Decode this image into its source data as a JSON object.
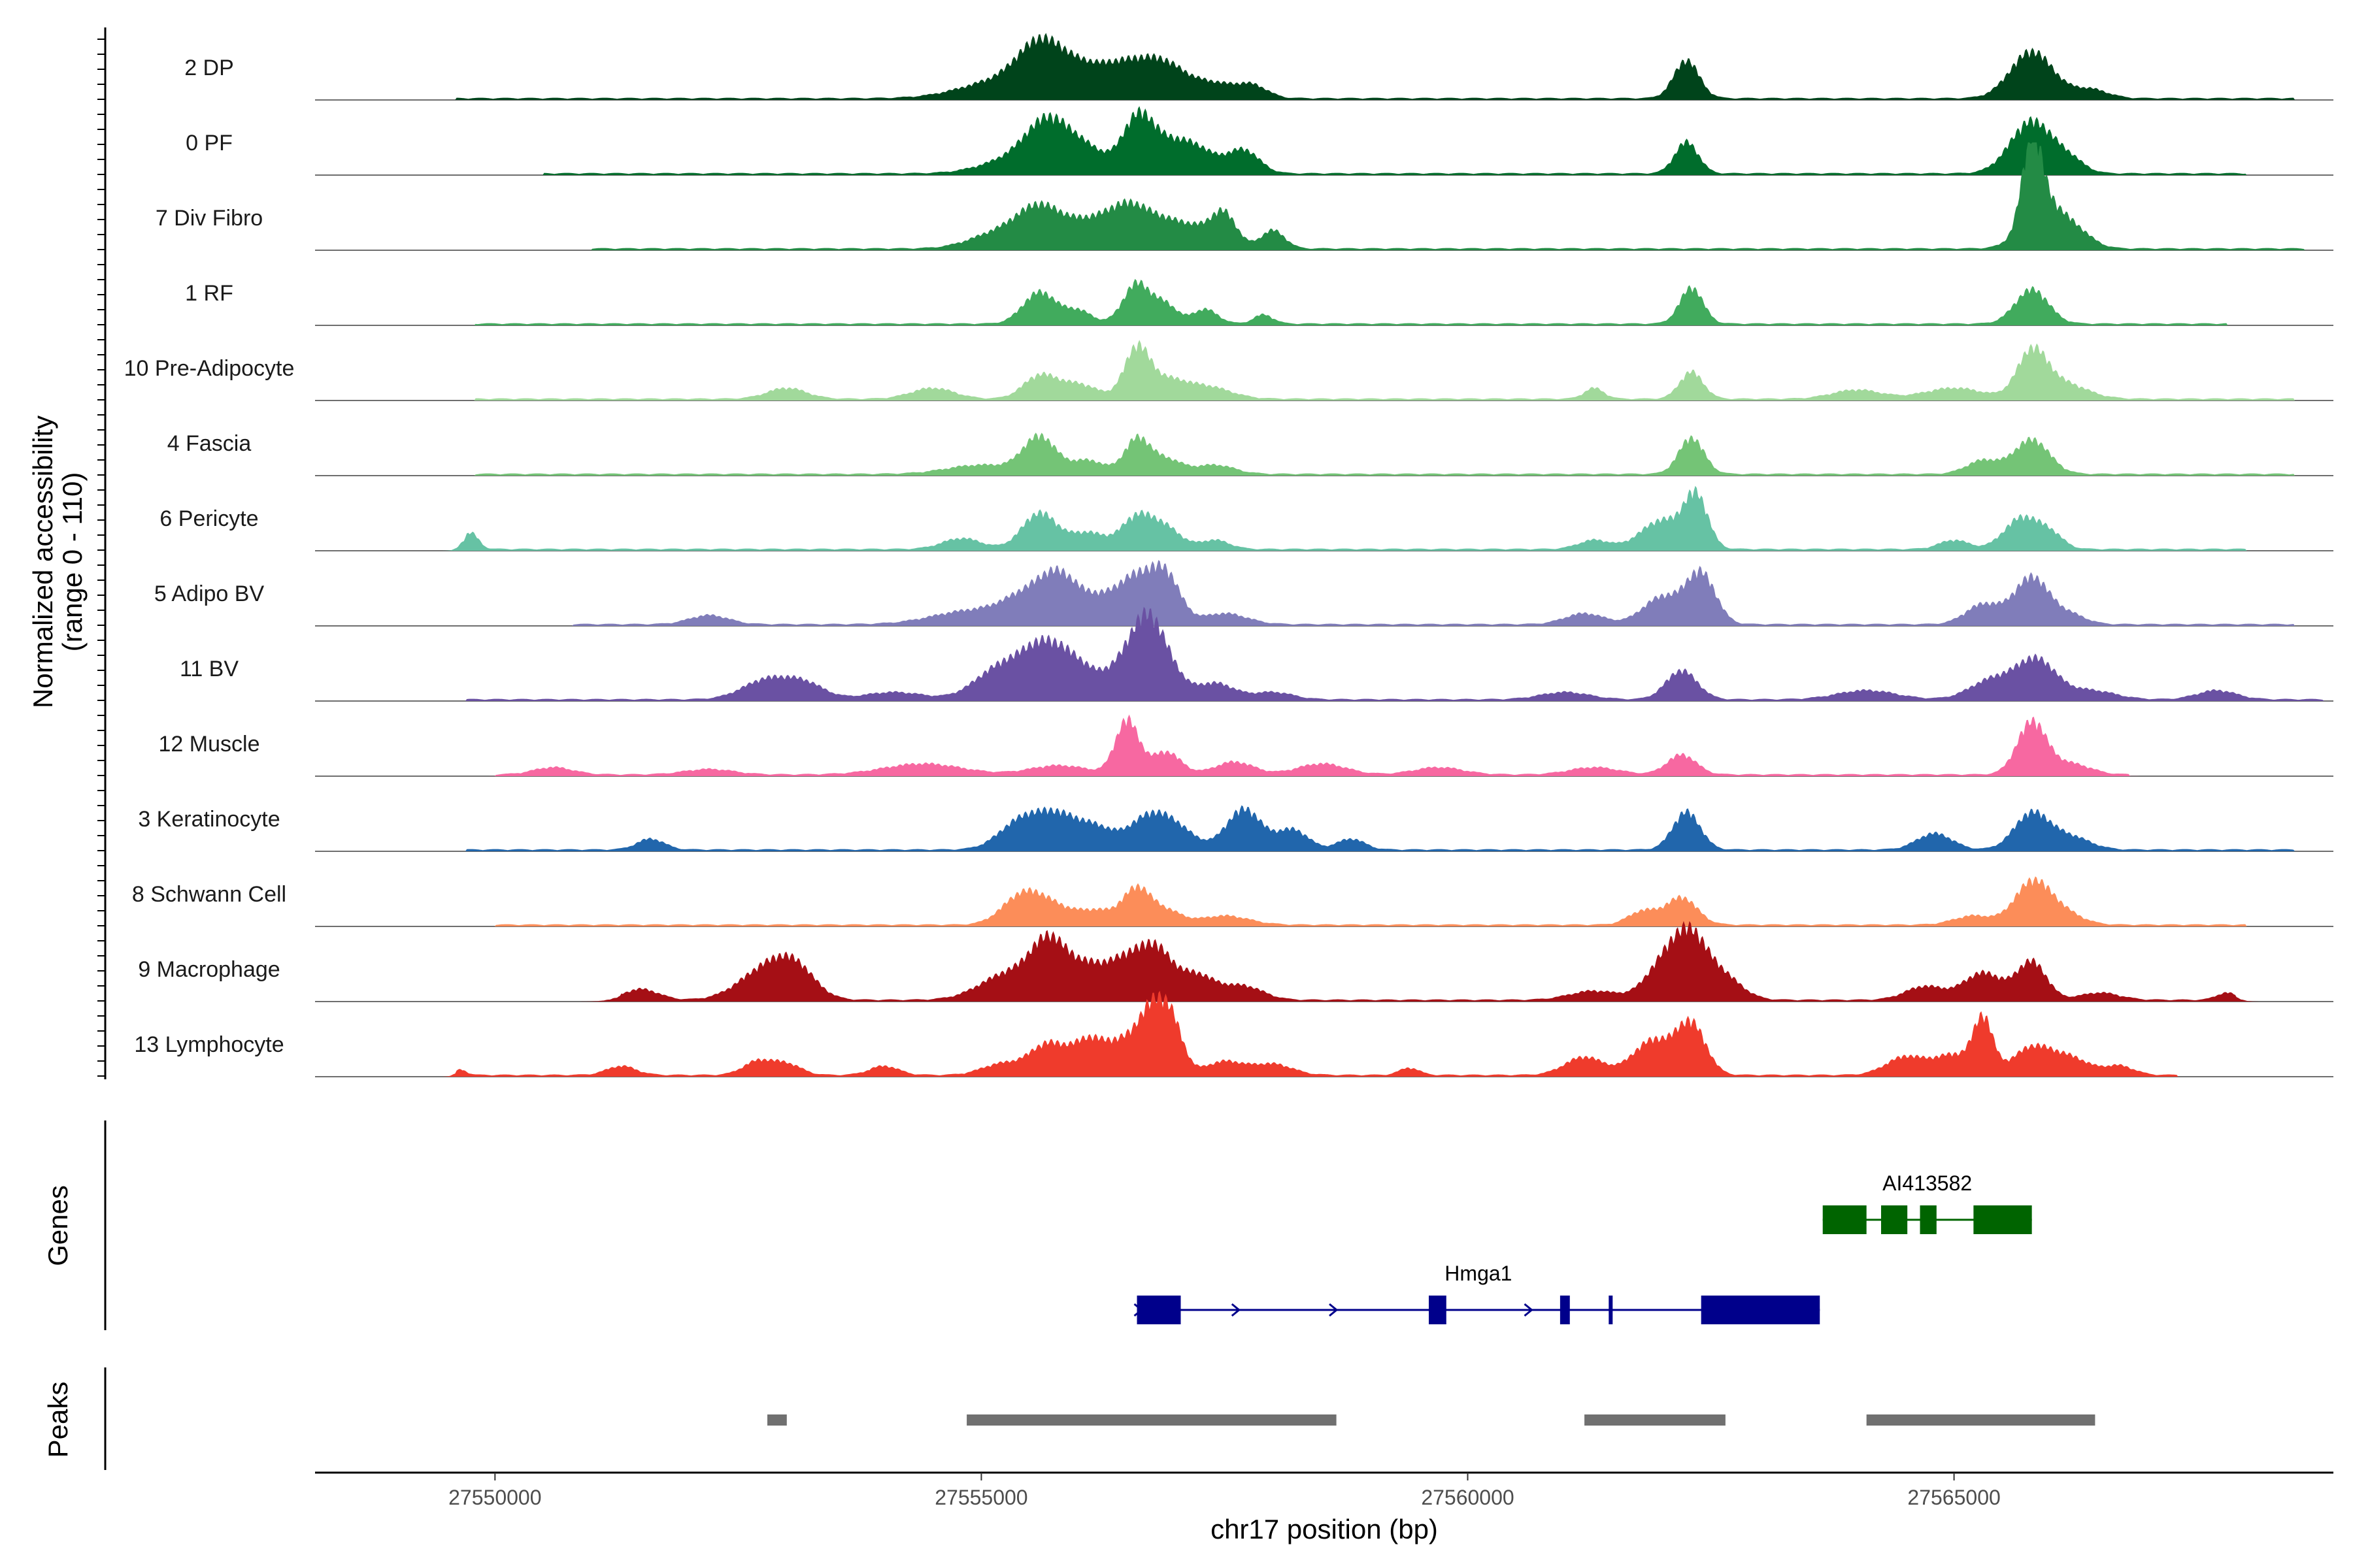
{
  "chart_data": {
    "type": "area",
    "title": "",
    "chromosome": "chr17",
    "xlabel": "chr17 position (bp)",
    "ylabel": "Normalized accessibility",
    "ylabel_range": "(range 0 - 110)",
    "xlim": [
      27548150,
      27568900
    ],
    "ylim": [
      0,
      110
    ],
    "x_ticks": [
      27550000,
      27555000,
      27560000,
      27565000
    ],
    "x_tick_labels": [
      "27550000",
      "27555000",
      "27560000",
      "27565000"
    ],
    "tracks": [
      {
        "name": "2 DP",
        "color": "#00441b",
        "noise": [
          27549600,
          27568500
        ],
        "peaks": [
          [
            27555300,
            450,
            22
          ],
          [
            27555600,
            220,
            42
          ],
          [
            27556000,
            250,
            26
          ],
          [
            27556500,
            260,
            34
          ],
          [
            27556900,
            220,
            30
          ],
          [
            27557400,
            240,
            16
          ],
          [
            27557800,
            150,
            12
          ],
          [
            27562250,
            130,
            42
          ],
          [
            27565800,
            220,
            52
          ],
          [
            27566400,
            180,
            10
          ]
        ]
      },
      {
        "name": "0 PF",
        "color": "#006d2c",
        "noise": [
          27550500,
          27568000
        ],
        "peaks": [
          [
            27555400,
            350,
            18
          ],
          [
            27555700,
            220,
            48
          ],
          [
            27556100,
            200,
            22
          ],
          [
            27556600,
            150,
            44
          ],
          [
            27556800,
            250,
            30
          ],
          [
            27557200,
            220,
            25
          ],
          [
            27557700,
            160,
            25
          ],
          [
            27562250,
            120,
            35
          ],
          [
            27565800,
            220,
            58
          ],
          [
            27566200,
            150,
            12
          ]
        ]
      },
      {
        "name": "7 Div Fibro",
        "color": "#238b45",
        "noise": [
          27551000,
          27568600
        ],
        "peaks": [
          [
            27555200,
            300,
            18
          ],
          [
            27555600,
            220,
            38
          ],
          [
            27556100,
            260,
            28
          ],
          [
            27556500,
            200,
            33
          ],
          [
            27556850,
            250,
            26
          ],
          [
            27557300,
            250,
            18
          ],
          [
            27557500,
            120,
            28
          ],
          [
            27558000,
            120,
            20
          ],
          [
            27565800,
            100,
            90
          ],
          [
            27565950,
            220,
            48
          ],
          [
            27566300,
            160,
            10
          ]
        ]
      },
      {
        "name": "1 RF",
        "color": "#41ab5d",
        "noise": [
          27549800,
          27567800
        ],
        "peaks": [
          [
            27555600,
            170,
            35
          ],
          [
            27556000,
            140,
            14
          ],
          [
            27556600,
            140,
            45
          ],
          [
            27556900,
            120,
            20
          ],
          [
            27557300,
            130,
            16
          ],
          [
            27557900,
            100,
            10
          ],
          [
            27562300,
            120,
            40
          ],
          [
            27565800,
            170,
            38
          ]
        ]
      },
      {
        "name": "10 Pre-Adipocyte",
        "color": "#a1d99b",
        "noise": [
          27549800,
          27568500
        ],
        "peaks": [
          [
            27553000,
            200,
            12
          ],
          [
            27554500,
            220,
            12
          ],
          [
            27555600,
            170,
            25
          ],
          [
            27556000,
            200,
            16
          ],
          [
            27556600,
            130,
            55
          ],
          [
            27556900,
            180,
            18
          ],
          [
            27557300,
            250,
            14
          ],
          [
            27561300,
            100,
            12
          ],
          [
            27562300,
            120,
            30
          ],
          [
            27564000,
            250,
            10
          ],
          [
            27565000,
            300,
            12
          ],
          [
            27565800,
            150,
            48
          ],
          [
            27566100,
            250,
            18
          ]
        ]
      },
      {
        "name": "4 Fascia",
        "color": "#74c476",
        "noise": [
          27549800,
          27568500
        ],
        "peaks": [
          [
            27555000,
            350,
            10
          ],
          [
            27555600,
            170,
            40
          ],
          [
            27556100,
            170,
            15
          ],
          [
            27556600,
            130,
            38
          ],
          [
            27556900,
            160,
            16
          ],
          [
            27557400,
            200,
            10
          ],
          [
            27562300,
            130,
            40
          ],
          [
            27565300,
            170,
            15
          ],
          [
            27565800,
            180,
            38
          ]
        ]
      },
      {
        "name": "6 Pericyte",
        "color": "#66c2a4",
        "noise": [
          27549700,
          27568000
        ],
        "peaks": [
          [
            27549750,
            80,
            18
          ],
          [
            27554800,
            200,
            12
          ],
          [
            27555600,
            180,
            40
          ],
          [
            27556100,
            180,
            18
          ],
          [
            27556600,
            160,
            35
          ],
          [
            27556900,
            160,
            22
          ],
          [
            27557400,
            150,
            10
          ],
          [
            27561300,
            160,
            10
          ],
          [
            27562000,
            220,
            32
          ],
          [
            27562350,
            120,
            55
          ],
          [
            27565000,
            150,
            10
          ],
          [
            27565700,
            180,
            35
          ],
          [
            27566000,
            130,
            14
          ]
        ]
      },
      {
        "name": "5 Adipo BV",
        "color": "#807dba",
        "noise": [
          27550800,
          27568500
        ],
        "peaks": [
          [
            27552200,
            200,
            10
          ],
          [
            27554900,
            400,
            15
          ],
          [
            27555500,
            250,
            30
          ],
          [
            27555800,
            180,
            38
          ],
          [
            27556200,
            230,
            28
          ],
          [
            27556600,
            180,
            45
          ],
          [
            27556900,
            150,
            50
          ],
          [
            27557500,
            230,
            12
          ],
          [
            27561200,
            200,
            12
          ],
          [
            27562000,
            200,
            30
          ],
          [
            27562400,
            150,
            55
          ],
          [
            27565300,
            180,
            22
          ],
          [
            27565800,
            180,
            52
          ],
          [
            27566200,
            160,
            10
          ]
        ]
      },
      {
        "name": "11 BV",
        "color": "#6a51a3",
        "noise": [
          27549700,
          27568800
        ],
        "peaks": [
          [
            27552800,
            250,
            22
          ],
          [
            27553200,
            200,
            15
          ],
          [
            27554100,
            300,
            8
          ],
          [
            27555200,
            260,
            35
          ],
          [
            27555650,
            220,
            52
          ],
          [
            27556000,
            200,
            30
          ],
          [
            27556500,
            200,
            40
          ],
          [
            27556700,
            150,
            55
          ],
          [
            27556900,
            160,
            35
          ],
          [
            27557400,
            200,
            18
          ],
          [
            27558000,
            200,
            8
          ],
          [
            27561000,
            250,
            8
          ],
          [
            27562200,
            160,
            32
          ],
          [
            27564100,
            300,
            10
          ],
          [
            27565400,
            230,
            22
          ],
          [
            27565850,
            200,
            42
          ],
          [
            27566400,
            250,
            10
          ],
          [
            27567700,
            200,
            10
          ]
        ]
      },
      {
        "name": "12 Muscle",
        "color": "#f768a1",
        "noise": [
          27550000,
          27566800
        ],
        "peaks": [
          [
            27550600,
            200,
            8
          ],
          [
            27552200,
            250,
            6
          ],
          [
            27554400,
            400,
            12
          ],
          [
            27555800,
            300,
            10
          ],
          [
            27556500,
            120,
            60
          ],
          [
            27556900,
            150,
            25
          ],
          [
            27557600,
            200,
            14
          ],
          [
            27558500,
            250,
            12
          ],
          [
            27559700,
            250,
            8
          ],
          [
            27561300,
            250,
            8
          ],
          [
            27562200,
            150,
            22
          ],
          [
            27565800,
            150,
            58
          ],
          [
            27566200,
            200,
            12
          ]
        ]
      },
      {
        "name": "3 Keratinocyte",
        "color": "#2166ac",
        "noise": [
          27549700,
          27568500
        ],
        "peaks": [
          [
            27551600,
            140,
            12
          ],
          [
            27555400,
            220,
            30
          ],
          [
            27555800,
            220,
            35
          ],
          [
            27556200,
            180,
            20
          ],
          [
            27556700,
            200,
            32
          ],
          [
            27557000,
            200,
            22
          ],
          [
            27557700,
            180,
            45
          ],
          [
            27558200,
            160,
            22
          ],
          [
            27558800,
            140,
            12
          ],
          [
            27562250,
            140,
            42
          ],
          [
            27564800,
            180,
            18
          ],
          [
            27565800,
            180,
            40
          ],
          [
            27566200,
            200,
            14
          ]
        ]
      },
      {
        "name": "8 Schwann Cell",
        "color": "#fc8d59",
        "noise": [
          27550000,
          27568000
        ],
        "peaks": [
          [
            27555400,
            200,
            28
          ],
          [
            27555700,
            220,
            20
          ],
          [
            27556200,
            200,
            15
          ],
          [
            27556600,
            140,
            38
          ],
          [
            27556900,
            160,
            15
          ],
          [
            27557500,
            250,
            10
          ],
          [
            27561800,
            150,
            15
          ],
          [
            27562200,
            160,
            30
          ],
          [
            27565200,
            200,
            10
          ],
          [
            27565800,
            180,
            45
          ],
          [
            27566100,
            200,
            14
          ]
        ]
      },
      {
        "name": "9 Macrophage",
        "color": "#a50f15",
        "noise": [
          27551300,
          27567900
        ],
        "peaks": [
          [
            27551500,
            180,
            12
          ],
          [
            27552800,
            280,
            35
          ],
          [
            27553100,
            200,
            25
          ],
          [
            27555300,
            300,
            30
          ],
          [
            27555700,
            180,
            55
          ],
          [
            27556100,
            200,
            35
          ],
          [
            27556500,
            180,
            40
          ],
          [
            27556800,
            160,
            48
          ],
          [
            27557200,
            200,
            28
          ],
          [
            27557700,
            200,
            15
          ],
          [
            27561300,
            250,
            10
          ],
          [
            27562050,
            200,
            45
          ],
          [
            27562300,
            160,
            50
          ],
          [
            27562600,
            200,
            28
          ],
          [
            27564700,
            200,
            15
          ],
          [
            27565300,
            200,
            30
          ],
          [
            27565800,
            150,
            42
          ],
          [
            27566500,
            200,
            8
          ],
          [
            27567800,
            100,
            8
          ]
        ]
      },
      {
        "name": "13 Lymphocyte",
        "color": "#ef3b2c",
        "noise": [
          27549600,
          27567300
        ],
        "peaks": [
          [
            27549650,
            60,
            6
          ],
          [
            27551300,
            150,
            10
          ],
          [
            27552700,
            150,
            15
          ],
          [
            27553000,
            150,
            12
          ],
          [
            27554000,
            150,
            10
          ],
          [
            27555200,
            200,
            12
          ],
          [
            27555700,
            200,
            35
          ],
          [
            27556100,
            150,
            30
          ],
          [
            27556500,
            220,
            40
          ],
          [
            27556750,
            120,
            48
          ],
          [
            27556950,
            120,
            58
          ],
          [
            27557500,
            200,
            15
          ],
          [
            27558000,
            200,
            12
          ],
          [
            27559400,
            100,
            8
          ],
          [
            27561200,
            200,
            20
          ],
          [
            27561900,
            200,
            38
          ],
          [
            27562300,
            150,
            55
          ],
          [
            27564500,
            200,
            20
          ],
          [
            27565000,
            200,
            22
          ],
          [
            27565300,
            100,
            58
          ],
          [
            27565800,
            200,
            30
          ],
          [
            27566200,
            200,
            18
          ],
          [
            27566700,
            150,
            10
          ]
        ]
      }
    ],
    "genes_label": "Genes",
    "genes": [
      {
        "name": "AI413582",
        "color": "#006400",
        "start": 27563650,
        "end": 27565800,
        "strand": "",
        "exons": [
          [
            27563650,
            27564100
          ],
          [
            27564250,
            27564520
          ],
          [
            27564650,
            27564820
          ],
          [
            27565200,
            27565800
          ]
        ]
      },
      {
        "name": "Hmga1",
        "color": "#00008b",
        "start": 27556600,
        "end": 27563620,
        "strand": "+",
        "exons": [
          [
            27556600,
            27557050
          ],
          [
            27559600,
            27559780
          ],
          [
            27560950,
            27561050
          ],
          [
            27561450,
            27561490
          ],
          [
            27562400,
            27563620
          ]
        ]
      }
    ],
    "peaks_label": "Peaks",
    "peaks_color": "#707070",
    "peak_regions": [
      [
        27552800,
        27553000
      ],
      [
        27554850,
        27558650
      ],
      [
        27561200,
        27562650
      ],
      [
        27564100,
        27566450
      ]
    ]
  }
}
